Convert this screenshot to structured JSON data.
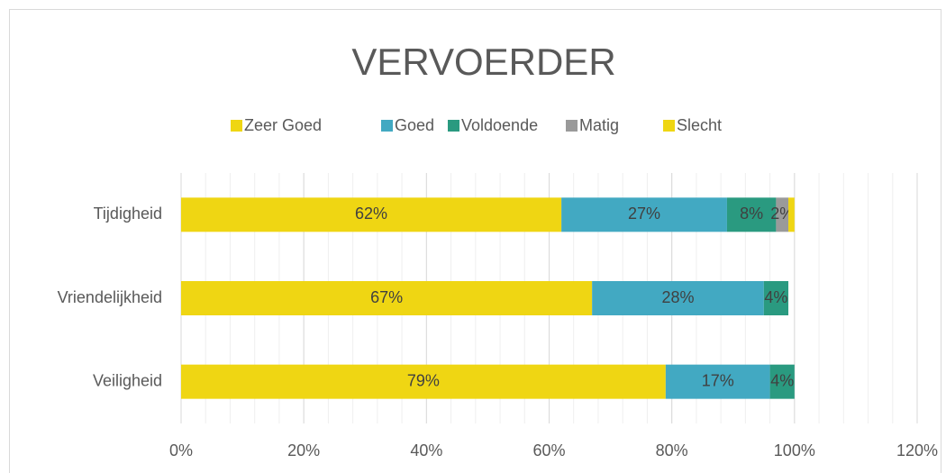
{
  "chart_data": {
    "type": "stacked_barh",
    "title": "VERVOERDER",
    "categories": [
      "Tijdigheid",
      "Vriendelijkheid",
      "Veiligheid"
    ],
    "series": [
      {
        "name": "Zeer Goed",
        "color": "#efd613",
        "values": [
          62,
          67,
          79
        ],
        "value_labels": [
          "62%",
          "67%",
          "79%"
        ]
      },
      {
        "name": "Goed",
        "color": "#42a9c2",
        "values": [
          27,
          28,
          17
        ],
        "value_labels": [
          "27%",
          "28%",
          "17%"
        ]
      },
      {
        "name": "Voldoende",
        "color": "#2a9a80",
        "values": [
          8,
          4,
          4
        ],
        "value_labels": [
          "8%",
          "4%",
          "4%"
        ]
      },
      {
        "name": "Matig",
        "color": "#9a9a9a",
        "values": [
          2,
          null,
          null
        ],
        "value_labels": [
          "2%",
          null,
          null
        ]
      },
      {
        "name": "Slecht",
        "color": "#efd613",
        "values": [
          1,
          null,
          null
        ],
        "value_labels": [
          null,
          null,
          null
        ]
      }
    ],
    "xlim": [
      0,
      120
    ],
    "xticks": [
      {
        "value": 0,
        "label": "0%"
      },
      {
        "value": 20,
        "label": "20%"
      },
      {
        "value": 40,
        "label": "40%"
      },
      {
        "value": 60,
        "label": "60%"
      },
      {
        "value": 80,
        "label": "80%"
      },
      {
        "value": 100,
        "label": "100%"
      },
      {
        "value": 120,
        "label": "120%"
      }
    ],
    "minor_grid": 4,
    "grid": true,
    "legend": "top"
  }
}
